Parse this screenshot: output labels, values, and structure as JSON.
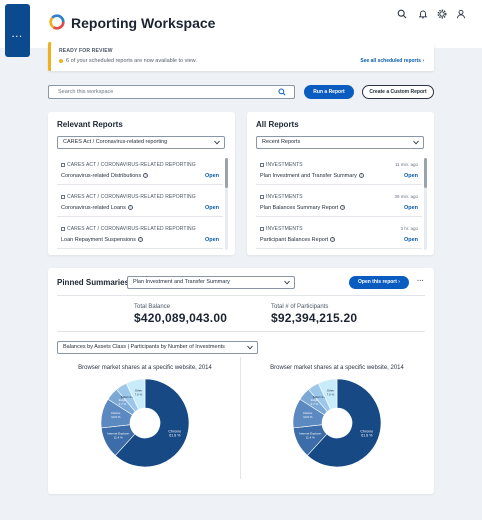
{
  "app": {
    "title": "Reporting Workspace",
    "menu_glyph": "···"
  },
  "alert": {
    "title": "READY FOR REVIEW",
    "message": "6 of your scheduled reports are now available to view.",
    "link": "See all scheduled reports ›"
  },
  "search": {
    "placeholder": "Search this workspace"
  },
  "actions": {
    "run": "Run a Report",
    "custom": "Create a Custom Report"
  },
  "relevant": {
    "title": "Relevant Reports",
    "filter": "CARES Act / Coronavirus-related reporting",
    "items": [
      {
        "category": "CARES ACT / CORONAVIRUS-RELATED REPORTING",
        "name": "Coronavirus-related Distributions",
        "action": "Open"
      },
      {
        "category": "CARES ACT / CORONAVIRUS-RELATED REPORTING",
        "name": "Coronavirus-related Loans",
        "action": "Open"
      },
      {
        "category": "CARES ACT / CORONAVIRUS-RELATED REPORTING",
        "name": "Loan Repayment Suspensions",
        "action": "Open"
      }
    ]
  },
  "all": {
    "title": "All Reports",
    "filter": "Recent Reports",
    "items": [
      {
        "category": "INVESTMENTS",
        "time": "11 min. ago",
        "name": "Plan Investment and Transfer Summary",
        "action": "Open"
      },
      {
        "category": "INVESTMENTS",
        "time": "39 min. ago",
        "name": "Plan Balances Summary Report",
        "action": "Open"
      },
      {
        "category": "INVESTMENTS",
        "time": "3 hr. ago",
        "name": "Participant Balances Report",
        "action": "Open"
      }
    ]
  },
  "pinned": {
    "title": "Pinned Summaries",
    "selected": "Plan Investment and Transfer Summary",
    "open_button": "Open this report ›",
    "more": "···",
    "metrics": [
      {
        "label": "Total Balance",
        "value": "$420,089,043.00"
      },
      {
        "label": "Total # of Participants",
        "value": "$92,394,215.20"
      }
    ],
    "chart_filter": "Balances by Assets Class  |  Participants by Number of Investments"
  },
  "colors": {
    "primary": "#0b5cc0",
    "warning": "#f2b01e",
    "chart_dark": "#1a4f8a"
  },
  "chart_data": [
    {
      "type": "pie",
      "title": "Browser market shares at a specific website, 2014",
      "slices": [
        {
          "name": "Chrome",
          "value": 61.8,
          "label": "Chrome\n61.8 %",
          "color": "#174a85"
        },
        {
          "name": "Internet Explorer",
          "value": 11.4,
          "label": "Internet Explorer\n11.4 %",
          "color": "#3c6da8"
        },
        {
          "name": "Firefox",
          "value": 10.9,
          "label": "Firefox\n10.9 %",
          "color": "#5b89c0"
        },
        {
          "name": "Edge",
          "value": 4.7,
          "label": "Edge\n4.7 %",
          "color": "#7ca8d6"
        },
        {
          "name": "Safari",
          "value": 4.2,
          "label": "Safari 4.2 %",
          "color": "#9cc6ea"
        },
        {
          "name": "Other",
          "value": 7.0,
          "label": "Other\n7.0 %",
          "color": "#c9ecfb"
        }
      ]
    },
    {
      "type": "pie",
      "title": "Browser market shares at a specific website, 2014",
      "slices": [
        {
          "name": "Chrome",
          "value": 61.8,
          "label": "Chrome\n61.8 %",
          "color": "#174a85"
        },
        {
          "name": "Internet Explorer",
          "value": 11.4,
          "label": "Internet Explorer\n11.4 %",
          "color": "#3c6da8"
        },
        {
          "name": "Firefox",
          "value": 10.9,
          "label": "Firefox\n10.9 %",
          "color": "#5b89c0"
        },
        {
          "name": "Edge",
          "value": 4.7,
          "label": "Edge\n4.7 %",
          "color": "#7ca8d6"
        },
        {
          "name": "Safari",
          "value": 4.2,
          "label": "Safari 4.2 %",
          "color": "#9cc6ea"
        },
        {
          "name": "Other",
          "value": 7.0,
          "label": "Other\n7.0 %",
          "color": "#c9ecfb"
        }
      ]
    }
  ]
}
